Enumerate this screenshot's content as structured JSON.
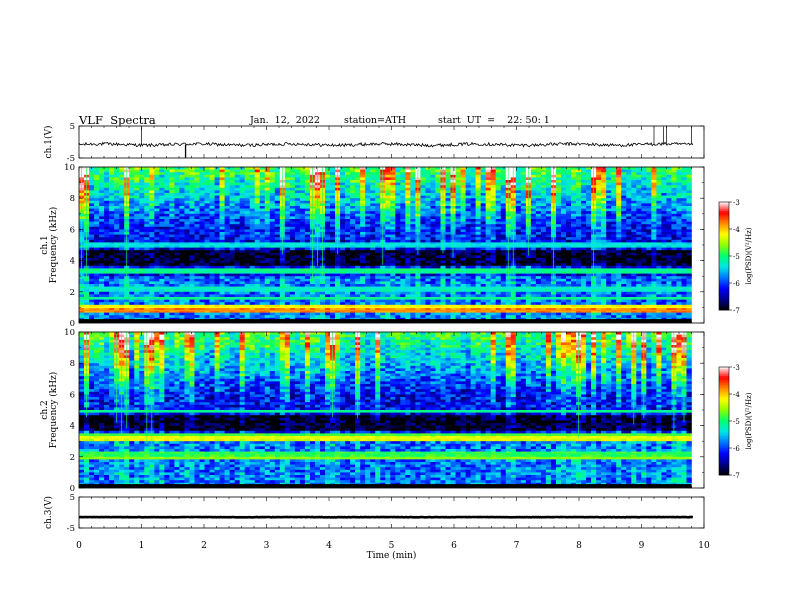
{
  "header": {
    "title": "VLF  Spectra",
    "date": "Jan.  12,  2022",
    "station": "station=ATH",
    "start": "start  UT  =    22: 50: 1"
  },
  "chart_data": [
    {
      "type": "line",
      "ylabel": "ch.1(V)",
      "yticks": [
        "5",
        "-5"
      ],
      "ylim": [
        -5,
        5
      ],
      "xlim": [
        0,
        10
      ],
      "trace": {
        "baseline": -0.8,
        "noise": 0.5,
        "spikes_up": [
          1.0,
          9.2,
          9.35,
          9.4,
          9.8
        ],
        "spikes_down": [
          1.7,
          1.71
        ]
      }
    },
    {
      "type": "heatmap",
      "ylabel": "ch.1\nFrequency  (kHz)",
      "yticks": [
        "10",
        "8",
        "6",
        "4",
        "2",
        "0"
      ],
      "ylim": [
        0,
        10
      ],
      "xlim": [
        0,
        9.8
      ],
      "colorbar": {
        "label": "log(PSD)(V²/Hz)",
        "ticks": [
          "-3",
          "-4",
          "-5",
          "-6",
          "-7"
        ],
        "range": [
          -7,
          -3
        ]
      },
      "bands": [
        {
          "f": 0.8,
          "value": -3.8
        },
        {
          "f": 1.0,
          "value": -4.2
        },
        {
          "f": 1.6,
          "value": -5.1
        },
        {
          "f": 2.2,
          "value": -5.3
        },
        {
          "f": 3.3,
          "value": -5.1
        },
        {
          "f": 5.0,
          "value": -5.4
        }
      ]
    },
    {
      "type": "heatmap",
      "ylabel": "ch.2\nFrequency  (kHz)",
      "yticks": [
        "10",
        "8",
        "6",
        "4",
        "2",
        "0"
      ],
      "ylim": [
        0,
        10
      ],
      "xlim": [
        0,
        9.8
      ],
      "colorbar": {
        "label": "log(PSD)(V²/Hz)",
        "ticks": [
          "-3",
          "-4",
          "-5",
          "-6",
          "-7"
        ],
        "range": [
          -7,
          -3
        ]
      },
      "bands": [
        {
          "f": 1.9,
          "value": -4.6
        },
        {
          "f": 2.2,
          "value": -4.9
        },
        {
          "f": 3.2,
          "value": -4.3
        },
        {
          "f": 3.4,
          "value": -4.8
        },
        {
          "f": 4.9,
          "value": -5.1
        }
      ]
    },
    {
      "type": "line",
      "ylabel": "ch.3(V)",
      "yticks": [
        "5",
        "-5"
      ],
      "ylim": [
        -5,
        5
      ],
      "xlim": [
        0,
        10
      ],
      "trace": {
        "baseline": -1.5,
        "noise": 0.05
      }
    }
  ],
  "xaxis": {
    "label": "Time  (min)",
    "ticks": [
      "0",
      "1",
      "2",
      "3",
      "4",
      "5",
      "6",
      "7",
      "8",
      "9",
      "10"
    ],
    "range": [
      0,
      10
    ]
  },
  "colormap": [
    "#000000",
    "#00008c",
    "#0000ff",
    "#0078ff",
    "#00e6e6",
    "#00ff6e",
    "#8cff00",
    "#ffff00",
    "#ff8c00",
    "#ff0000",
    "#ffffff"
  ]
}
